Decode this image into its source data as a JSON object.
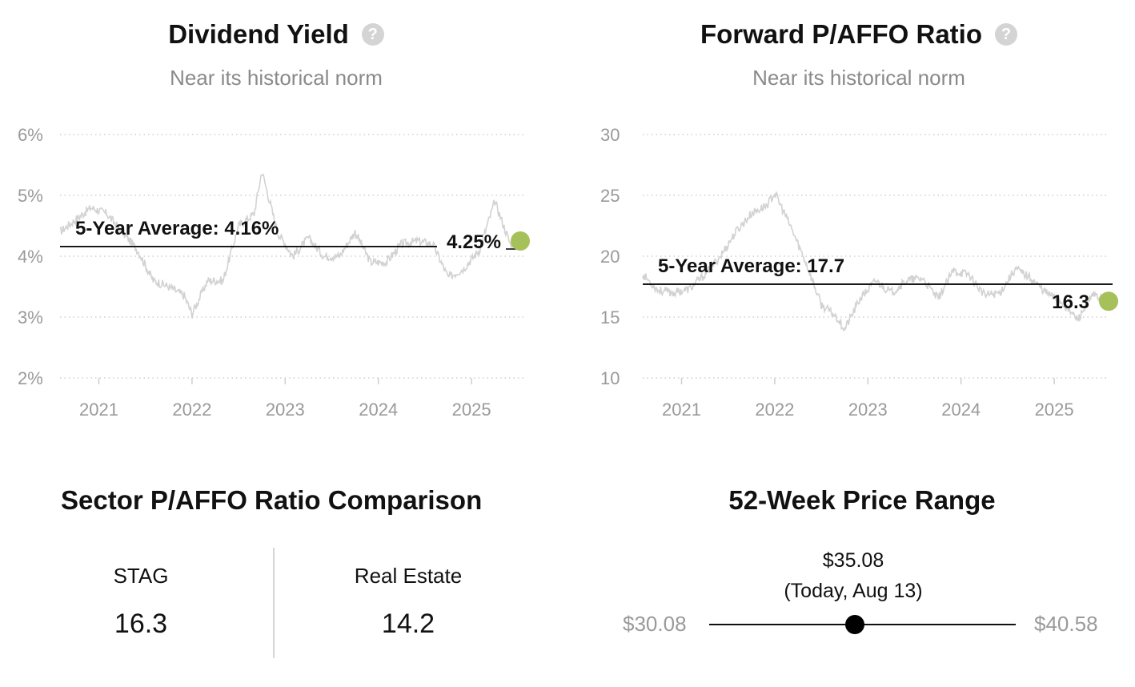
{
  "chart_data": [
    {
      "type": "line",
      "title": "Dividend Yield",
      "subtitle": "Near its historical norm",
      "help_icon": "question-circle-icon",
      "y_tick_labels": [
        "6%",
        "5%",
        "4%",
        "3%",
        "2%"
      ],
      "y_ticks": [
        6,
        5,
        4,
        3,
        2
      ],
      "ylim": [
        2,
        6
      ],
      "x_tick_labels": [
        "2021",
        "2022",
        "2023",
        "2024",
        "2025"
      ],
      "xlim": [
        "2020-08",
        "2025-08"
      ],
      "grid": true,
      "series": [
        {
          "values": [
            [
              "2020-08",
              4.4
            ],
            [
              "2020-10",
              4.6
            ],
            [
              "2020-12",
              4.8
            ],
            [
              "2021-02",
              4.7
            ],
            [
              "2021-04",
              4.4
            ],
            [
              "2021-06",
              4.1
            ],
            [
              "2021-08",
              3.6
            ],
            [
              "2021-10",
              3.5
            ],
            [
              "2021-12",
              3.35
            ],
            [
              "2022-01",
              3.05
            ],
            [
              "2022-03",
              3.6
            ],
            [
              "2022-05",
              3.6
            ],
            [
              "2022-07",
              4.5
            ],
            [
              "2022-09",
              4.7
            ],
            [
              "2022-10",
              5.4
            ],
            [
              "2022-12",
              4.4
            ],
            [
              "2023-02",
              4.0
            ],
            [
              "2023-04",
              4.3
            ],
            [
              "2023-06",
              4.0
            ],
            [
              "2023-08",
              4.0
            ],
            [
              "2023-10",
              4.4
            ],
            [
              "2023-12",
              3.9
            ],
            [
              "2024-02",
              3.9
            ],
            [
              "2024-04",
              4.2
            ],
            [
              "2024-06",
              4.25
            ],
            [
              "2024-08",
              4.2
            ],
            [
              "2024-10",
              3.65
            ],
            [
              "2024-12",
              3.8
            ],
            [
              "2025-02",
              4.1
            ],
            [
              "2025-04",
              4.9
            ],
            [
              "2025-06",
              4.2
            ],
            [
              "2025-08",
              4.25
            ]
          ]
        }
      ],
      "average_label": "5-Year Average: 4.16%",
      "average_value": 4.16,
      "current_label": "4.25%",
      "current_value": 4.25,
      "current_marker_color": "#a6c05a",
      "line_color": "#d2d2d2"
    },
    {
      "type": "line",
      "title": "Forward P/AFFO Ratio",
      "subtitle": "Near its historical norm",
      "help_icon": "question-circle-icon",
      "y_tick_labels": [
        "30",
        "25",
        "20",
        "15",
        "10"
      ],
      "y_ticks": [
        30,
        25,
        20,
        15,
        10
      ],
      "ylim": [
        10,
        30
      ],
      "x_tick_labels": [
        "2021",
        "2022",
        "2023",
        "2024",
        "2025"
      ],
      "xlim": [
        "2020-08",
        "2025-08"
      ],
      "grid": true,
      "series": [
        {
          "values": [
            [
              "2020-08",
              18.5
            ],
            [
              "2020-10",
              17.2
            ],
            [
              "2020-12",
              17.0
            ],
            [
              "2021-02",
              17.3
            ],
            [
              "2021-04",
              18.5
            ],
            [
              "2021-06",
              20.0
            ],
            [
              "2021-08",
              22.0
            ],
            [
              "2021-10",
              23.5
            ],
            [
              "2021-12",
              24.2
            ],
            [
              "2022-01",
              25.2
            ],
            [
              "2022-03",
              22.5
            ],
            [
              "2022-05",
              19.5
            ],
            [
              "2022-07",
              16.0
            ],
            [
              "2022-09",
              15.0
            ],
            [
              "2022-10",
              14.0
            ],
            [
              "2022-12",
              16.5
            ],
            [
              "2023-02",
              18.0
            ],
            [
              "2023-04",
              17.0
            ],
            [
              "2023-06",
              18.0
            ],
            [
              "2023-08",
              18.2
            ],
            [
              "2023-10",
              16.5
            ],
            [
              "2023-12",
              18.8
            ],
            [
              "2024-02",
              18.5
            ],
            [
              "2024-04",
              16.8
            ],
            [
              "2024-06",
              17.0
            ],
            [
              "2024-08",
              19.0
            ],
            [
              "2024-10",
              18.2
            ],
            [
              "2024-12",
              17.0
            ],
            [
              "2025-02",
              16.2
            ],
            [
              "2025-04",
              14.8
            ],
            [
              "2025-06",
              16.8
            ],
            [
              "2025-08",
              16.3
            ]
          ]
        }
      ],
      "average_label": "5-Year Average: 17.7",
      "average_value": 17.7,
      "current_label": "16.3",
      "current_value": 16.3,
      "current_marker_color": "#a6c05a",
      "line_color": "#d2d2d2"
    }
  ],
  "sector": {
    "title": "Sector P/AFFO Ratio Comparison",
    "left_label": "STAG",
    "left_value": "16.3",
    "right_label": "Real Estate",
    "right_value": "14.2"
  },
  "price_range": {
    "title": "52-Week Price Range",
    "current_price": "$35.08",
    "current_date": "(Today, Aug 13)",
    "low": "$30.08",
    "high": "$40.58",
    "low_value": 30.08,
    "high_value": 40.58,
    "current_value": 35.08
  }
}
